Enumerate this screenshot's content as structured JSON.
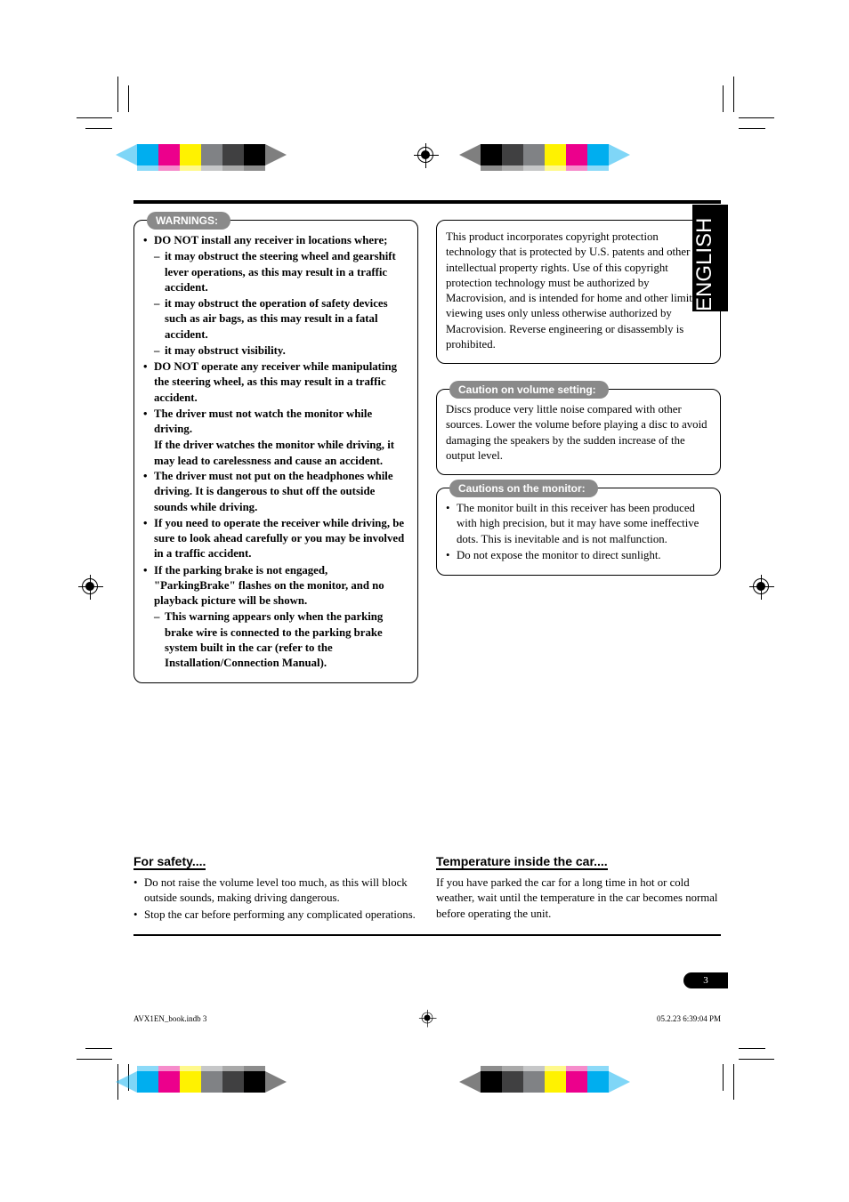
{
  "lang_tab": "ENGLISH",
  "color_bars": {
    "top_left": [
      "#00aeef",
      "#ec008c",
      "#fff200",
      "#808285",
      "#404041",
      "#000000"
    ],
    "top_right": [
      "#000000",
      "#404041",
      "#808285",
      "#fff200",
      "#ec008c",
      "#00aeef"
    ],
    "bottom_left": [
      "#00aeef",
      "#ec008c",
      "#fff200",
      "#808285",
      "#404041",
      "#000000"
    ],
    "bottom_right": [
      "#000000",
      "#404041",
      "#808285",
      "#fff200",
      "#ec008c",
      "#00aeef"
    ]
  },
  "warnings": {
    "title": "WARNINGS:",
    "items": [
      {
        "t": "DO NOT install any receiver in locations where;",
        "b": true
      },
      {
        "t": "it may obstruct the steering wheel and gearshift lever operations, as this may result in a traffic accident.",
        "b": true,
        "sub": true
      },
      {
        "t": "it may obstruct the operation of safety devices such as air bags, as this may result in a fatal accident.",
        "b": true,
        "sub": true
      },
      {
        "t": "it may obstruct visibility.",
        "b": true,
        "sub": true
      },
      {
        "t": "DO NOT operate any receiver while manipulating the steering wheel, as this may result in a traffic accident.",
        "b": true
      },
      {
        "t": "The driver must not watch the monitor while driving.",
        "b": true
      },
      {
        "t": "If the driver watches the monitor while driving, it may lead to carelessness and cause an accident.",
        "b": true,
        "cont": true
      },
      {
        "t": "The driver must not put on the headphones while driving. It is dangerous to shut off the outside sounds while driving.",
        "b": true
      },
      {
        "t": "If you need to operate the receiver while driving, be sure to look ahead carefully or you may be involved in a traffic accident.",
        "b": true
      },
      {
        "t": "If the parking brake is not engaged, \"ParkingBrake\" flashes on the monitor, and no playback picture will be shown.",
        "b": true
      },
      {
        "t": "This warning appears only when the parking brake wire is connected to the parking brake system built in the car (refer to the Installation/Connection Manual).",
        "b": true,
        "sub": true
      }
    ]
  },
  "copyright_box": "This product incorporates copyright protection technology that is protected by U.S. patents and other intellectual property rights. Use of this copyright protection technology must be authorized by Macrovision, and is intended for home and other limited viewing uses only unless otherwise authorized by Macrovision. Reverse engineering or disassembly is prohibited.",
  "volume_caution": {
    "title": "Caution on volume setting:",
    "body": "Discs produce very little noise compared with other sources. Lower the volume before playing a disc to avoid damaging the speakers by the sudden increase of the output level."
  },
  "monitor_cautions": {
    "title": "Cautions on the monitor:",
    "items": [
      "The monitor built in this receiver has been produced with high precision, but it may have some ineffective dots. This is inevitable and is not malfunction.",
      "Do not expose the monitor to direct sunlight."
    ]
  },
  "safety": {
    "title": "For safety....",
    "items": [
      "Do not raise the volume level too much, as this will block outside sounds, making driving dangerous.",
      "Stop the car before performing any complicated operations."
    ]
  },
  "temperature": {
    "title": "Temperature inside the car....",
    "body": "If you have parked the car for a long time in hot or cold weather, wait until the temperature in the car becomes normal before operating the unit."
  },
  "page_number": "3",
  "footer": {
    "left": "AVX1EN_book.indb   3",
    "right": "05.2.23   6:39:04 PM"
  }
}
